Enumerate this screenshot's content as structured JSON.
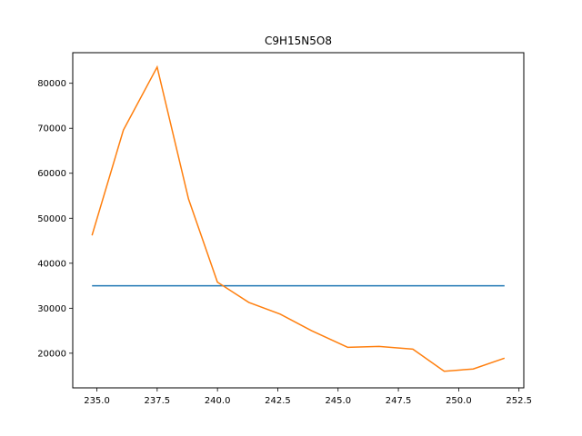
{
  "chart_data": {
    "type": "line",
    "title": "C9H15N5O8",
    "xlabel": "",
    "ylabel": "",
    "xlim": [
      234.0,
      252.7
    ],
    "ylim": [
      12300,
      86800
    ],
    "grid": false,
    "x_ticks": [
      235.0,
      237.5,
      240.0,
      242.5,
      245.0,
      247.5,
      250.0,
      252.5
    ],
    "x_tick_labels": [
      "235.0",
      "237.5",
      "240.0",
      "242.5",
      "245.0",
      "247.5",
      "250.0",
      "252.5"
    ],
    "y_ticks": [
      20000,
      30000,
      40000,
      50000,
      60000,
      70000,
      80000
    ],
    "y_tick_labels": [
      "20000",
      "30000",
      "40000",
      "50000",
      "60000",
      "70000",
      "80000"
    ],
    "series": [
      {
        "color": "#1f77b4",
        "x": [
          234.8,
          251.9
        ],
        "y": [
          35000,
          35000
        ]
      },
      {
        "color": "#ff7f0e",
        "x": [
          234.8,
          236.1,
          237.5,
          238.8,
          240.0,
          241.3,
          242.6,
          243.9,
          245.4,
          246.7,
          248.1,
          249.4,
          250.6,
          251.9
        ],
        "y": [
          46200,
          69600,
          83600,
          54300,
          35800,
          31300,
          28700,
          25000,
          21300,
          21500,
          20900,
          16000,
          16500,
          18900
        ]
      }
    ]
  }
}
